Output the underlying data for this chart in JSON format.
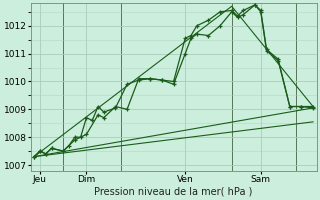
{
  "background_color": "#cceedd",
  "grid_color": "#aaccbb",
  "line_color": "#1a5c1a",
  "title": "Pression niveau de la mer( hPa )",
  "ylim": [
    1006.8,
    1012.8
  ],
  "yticks": [
    1007,
    1008,
    1009,
    1010,
    1011,
    1012
  ],
  "xlim": [
    -0.3,
    24.3
  ],
  "day_labels": [
    "Jeu",
    "Dim",
    "Ven",
    "Sam"
  ],
  "day_positions": [
    0.5,
    4.5,
    13.0,
    19.5
  ],
  "vline_positions": [
    2.5,
    7.5,
    17.0,
    22.5
  ],
  "series1_x": [
    0,
    0.5,
    1.0,
    1.5,
    2.5,
    3.0,
    3.5,
    4.0,
    4.5,
    5.0,
    5.5,
    6.0,
    7.0,
    8.0,
    9.0,
    10.0,
    11.0,
    12.0,
    13.0,
    13.5,
    14.0,
    15.0,
    16.0,
    17.0,
    17.5,
    18.0,
    19.0,
    19.5,
    20.0,
    21.0,
    22.0,
    23.0,
    24.0
  ],
  "series1_y": [
    1007.3,
    1007.5,
    1007.4,
    1007.6,
    1007.5,
    1007.7,
    1008.0,
    1008.0,
    1008.7,
    1008.6,
    1009.1,
    1008.9,
    1009.05,
    1009.9,
    1010.05,
    1010.1,
    1010.05,
    1010.0,
    1011.55,
    1011.65,
    1012.0,
    1012.2,
    1012.5,
    1012.55,
    1012.35,
    1012.55,
    1012.75,
    1012.5,
    1011.1,
    1010.75,
    1009.1,
    1009.1,
    1009.1
  ],
  "series2_x": [
    0,
    0.5,
    1.0,
    1.5,
    2.5,
    3.5,
    4.5,
    5.5,
    6.0,
    7.0,
    8.0,
    9.0,
    10.0,
    11.0,
    12.0,
    13.0,
    13.5,
    14.0,
    15.0,
    16.0,
    17.0,
    17.5,
    18.0,
    19.0,
    19.5,
    20.0,
    21.0,
    22.0,
    23.0,
    24.0
  ],
  "series2_y": [
    1007.3,
    1007.5,
    1007.4,
    1007.6,
    1007.5,
    1007.9,
    1008.1,
    1008.8,
    1008.7,
    1009.1,
    1009.0,
    1010.1,
    1010.1,
    1010.05,
    1009.9,
    1011.0,
    1011.55,
    1011.7,
    1011.65,
    1012.0,
    1012.5,
    1012.3,
    1012.4,
    1012.75,
    1012.55,
    1011.15,
    1010.8,
    1009.1,
    1009.1,
    1009.05
  ],
  "trend1_x": [
    0,
    17.0,
    24.0
  ],
  "trend1_y": [
    1007.3,
    1012.7,
    1009.1
  ],
  "trend2_x": [
    0,
    24.0
  ],
  "trend2_y": [
    1007.3,
    1009.05
  ],
  "trend3_x": [
    0,
    24.0
  ],
  "trend3_y": [
    1007.3,
    1008.55
  ]
}
